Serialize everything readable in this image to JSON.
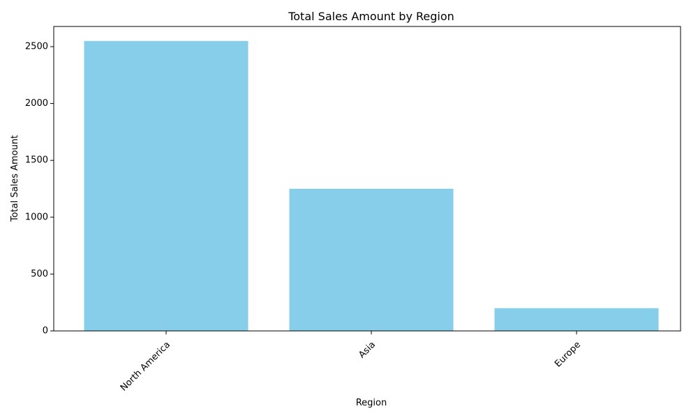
{
  "chart_data": {
    "type": "bar",
    "title": "Total Sales Amount by Region",
    "xlabel": "Region",
    "ylabel": "Total Sales Amount",
    "categories": [
      "North America",
      "Asia",
      "Europe"
    ],
    "values": [
      2550,
      1250,
      200
    ],
    "ylim": [
      0,
      2677.5
    ],
    "yticks": [
      0,
      500,
      1000,
      1500,
      2000,
      2500
    ],
    "ytick_labels": [
      "0",
      "500",
      "1000",
      "1500",
      "2000",
      "2500"
    ],
    "bar_color": "#87CEEB",
    "xtick_rotation": "45 degrees",
    "grid": false,
    "legend": "none"
  }
}
